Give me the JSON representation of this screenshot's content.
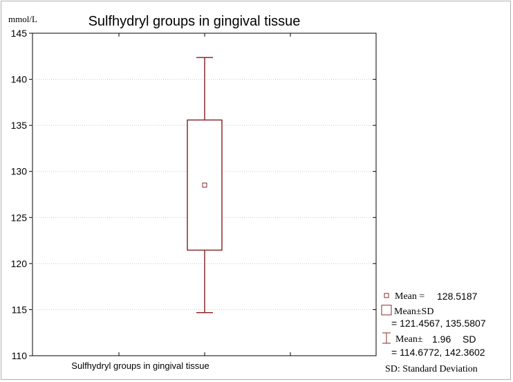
{
  "chart_data": {
    "type": "box",
    "title": "Sulfhydryl groups in gingival tissue",
    "ylabel": "mmol/L",
    "xlabel": "",
    "ylim": [
      110,
      145
    ],
    "yticks": [
      110,
      115,
      120,
      125,
      130,
      135,
      140,
      145
    ],
    "grid": true,
    "categories": [
      "Sulfhydryl groups in gingival tissue"
    ],
    "series": [
      {
        "mean": 128.5187,
        "sd_low": 121.4567,
        "sd_high": 135.5807,
        "ci_low": 114.6772,
        "ci_high": 142.3602
      }
    ],
    "legend": {
      "position": "bottom-right",
      "mean_label": "Mean =",
      "mean_value": "128.5187",
      "box_label": "Mean±SD",
      "box_value": "=   121.4567, 135.5807",
      "whisker_label": "Mean±",
      "whisker_mult": "1.96",
      "whisker_sd": "SD",
      "whisker_value": "=   114.6772, 142.3602",
      "footnote": "SD: Standard Deviation"
    },
    "colors": {
      "box": "#8b2a2a",
      "grid": "#c8c8c8",
      "axis": "#000000"
    }
  }
}
